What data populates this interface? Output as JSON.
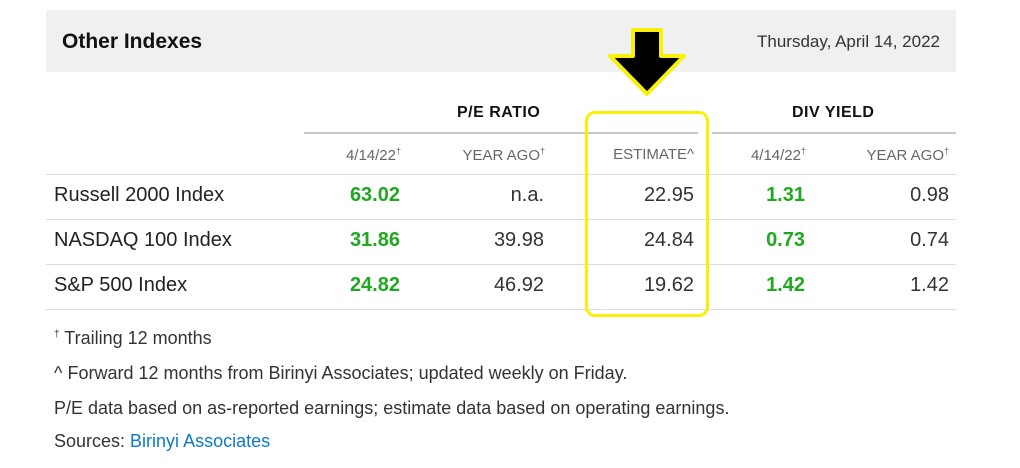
{
  "header": {
    "title": "Other Indexes",
    "date": "Thursday, April 14, 2022"
  },
  "groups": {
    "pe": "P/E RATIO",
    "div": "DIV YIELD"
  },
  "columns": [
    {
      "label": "4/14/22",
      "mark": "†"
    },
    {
      "label": "YEAR AGO",
      "mark": "†"
    },
    {
      "label": "ESTIMATE^",
      "mark": ""
    },
    {
      "label": "4/14/22",
      "mark": "†"
    },
    {
      "label": "YEAR AGO",
      "mark": "†"
    }
  ],
  "rows": [
    {
      "name": "Russell 2000 Index",
      "values": [
        "63.02",
        "n.a.",
        "22.95",
        "1.31",
        "0.98"
      ]
    },
    {
      "name": "NASDAQ 100 Index",
      "values": [
        "31.86",
        "39.98",
        "24.84",
        "0.73",
        "0.74"
      ]
    },
    {
      "name": "S&P 500 Index",
      "values": [
        "24.82",
        "46.92",
        "19.62",
        "1.42",
        "1.42"
      ]
    }
  ],
  "footnotes": {
    "trailing_mark": "†",
    "trailing": "Trailing 12 months",
    "forward": "^ Forward 12 months from Birinyi Associates; updated weekly on Friday.",
    "pe_note": "P/E data based on as-reported earnings; estimate data based on operating earnings.",
    "sources_label": "Sources: ",
    "sources_link": "Birinyi Associates"
  },
  "colors": {
    "highlight": "#f7f10a",
    "arrow_fill": "#000000",
    "positive": "#1fa91f",
    "link": "#0a7acb",
    "header_bg": "#f0f0f0"
  },
  "annotation": {
    "type": "arrow-down-icon",
    "target": "ESTIMATE^ column"
  }
}
